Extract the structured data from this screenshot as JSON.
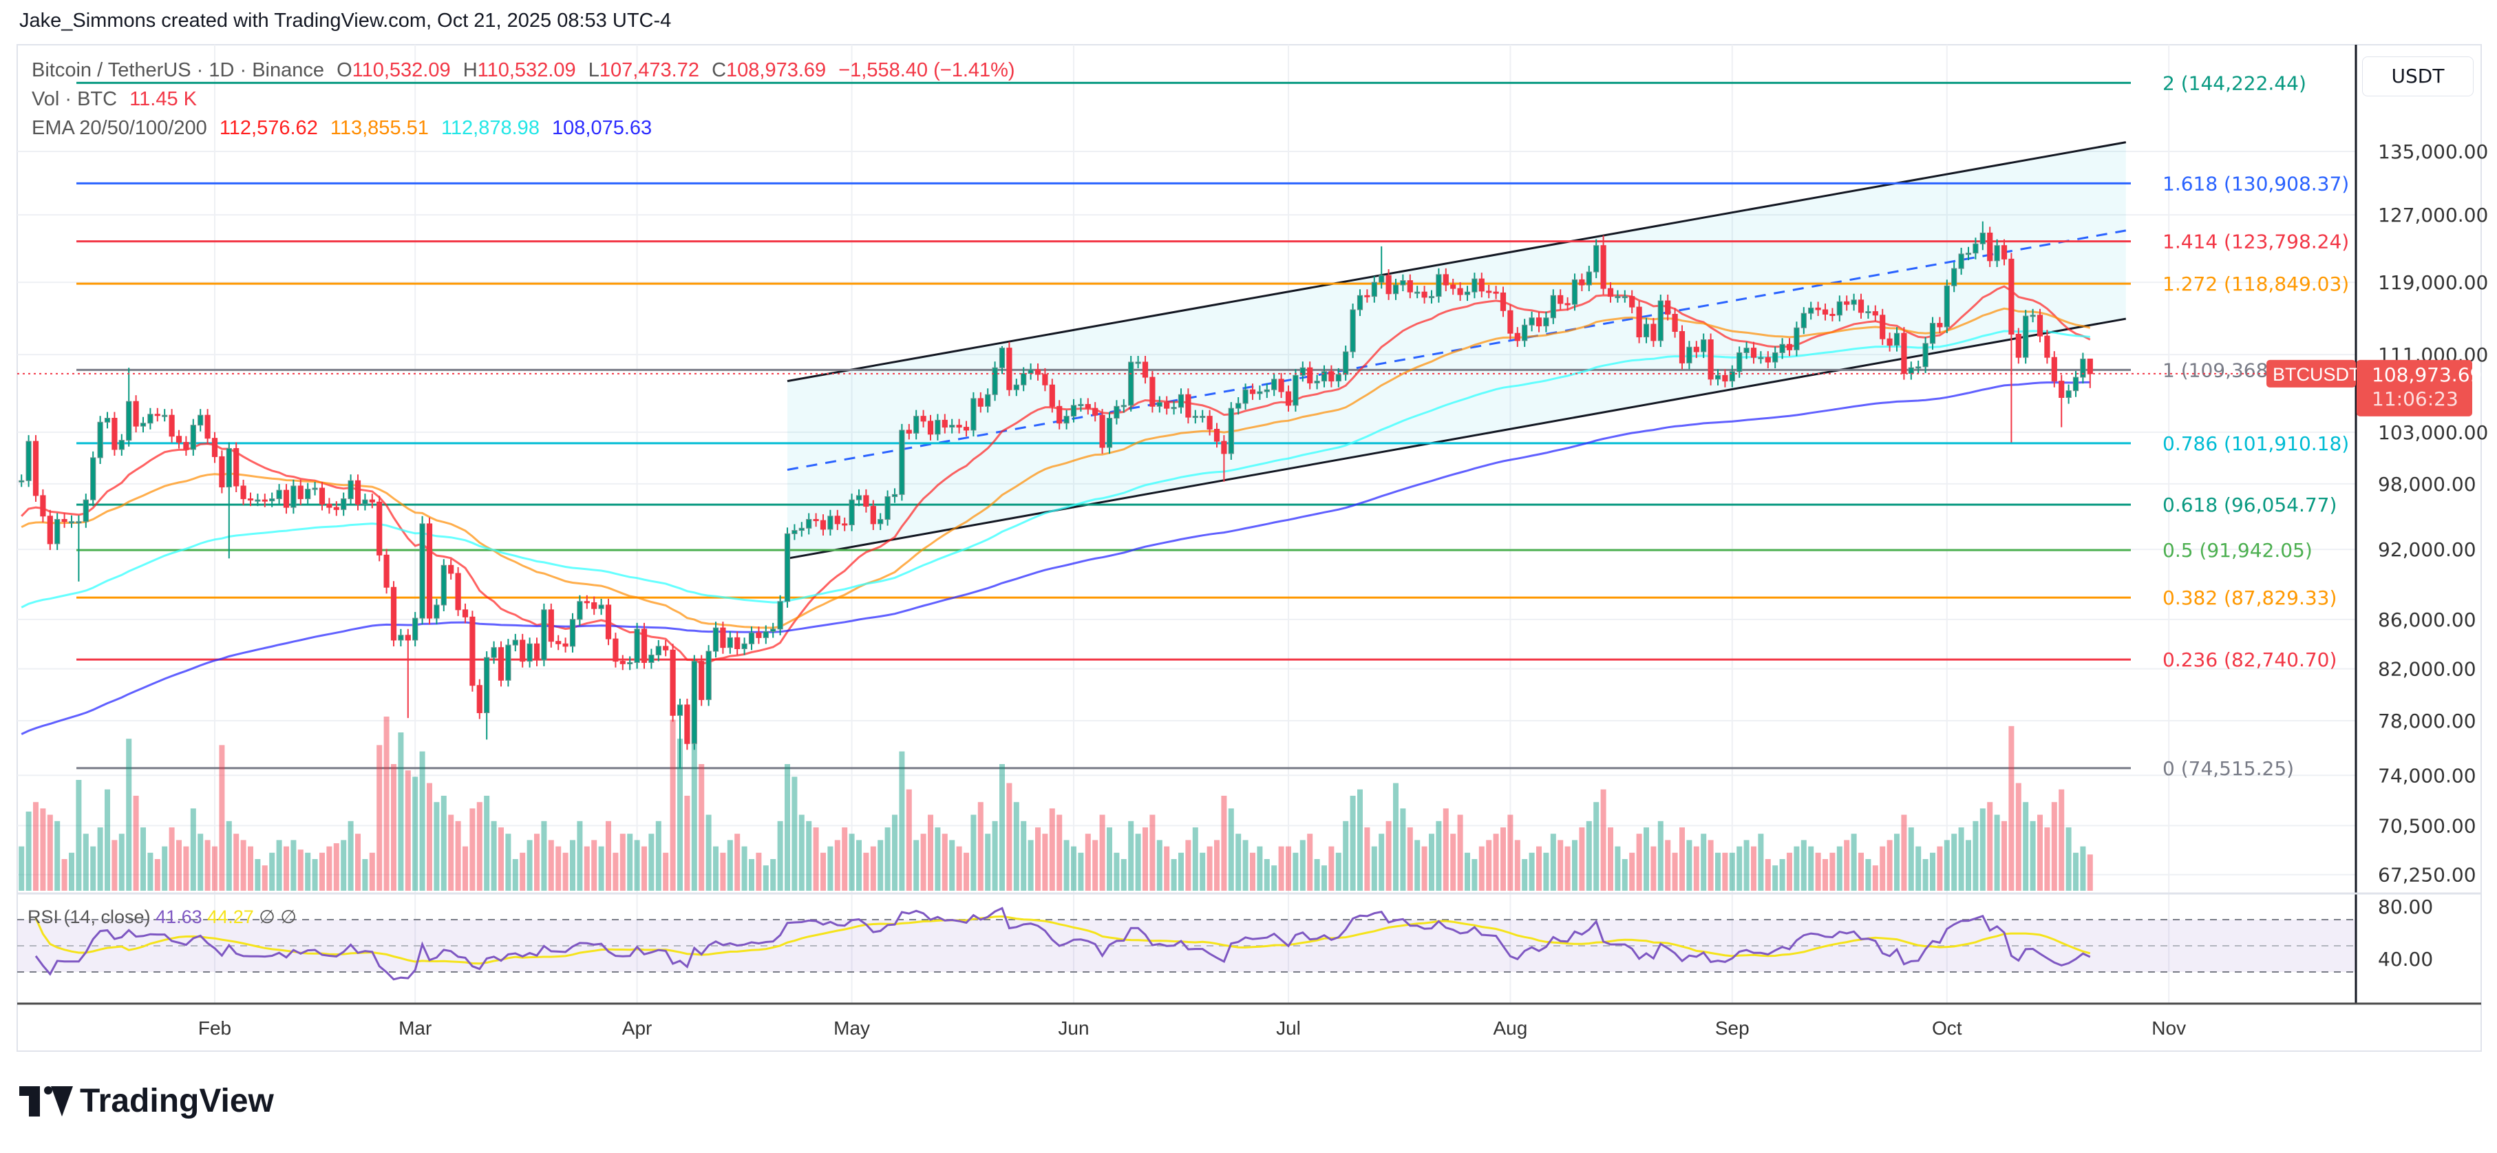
{
  "caption": "Jake_Simmons created with TradingView.com, Oct 21, 2025 08:53 UTC-4",
  "legend": {
    "symbol": "Bitcoin / TetherUS · 1D · Binance",
    "o_label": "O",
    "o": "110,532.09",
    "h_label": "H",
    "h": "110,532.09",
    "l_label": "L",
    "l": "107,473.72",
    "c_label": "C",
    "c": "108,973.69",
    "change": "−1,558.40 (−1.41%)",
    "vol_label": "Vol · BTC",
    "vol": "11.45 K",
    "ema_label": "EMA 20/50/100/200",
    "ema_values": [
      "112,576.62",
      "113,855.51",
      "112,878.98",
      "108,075.63"
    ]
  },
  "currency": "USDT",
  "price_tag": {
    "symbol": "BTCUSDT",
    "price": "108,973.69",
    "countdown": "11:06:23"
  },
  "rsi_legend": {
    "label": "RSI (14, close)",
    "rsi": "41.63",
    "signal": "44.27",
    "extra1": "∅",
    "extra2": "∅"
  },
  "logo": "TradingView",
  "colors": {
    "up": "#089981",
    "down": "#f23645",
    "ema20": "#ff1f1f",
    "ema50": "#ff8c00",
    "ema100": "#33ffff",
    "ema200": "#2b2bff",
    "rsi": "#7e57c2",
    "rsi_signal": "#f5e31a"
  },
  "chart_data": {
    "type": "candlestick",
    "scale": "log",
    "price_axis_labels": [
      "135,000.00",
      "127,000.00",
      "119,000.00",
      "111,000.00",
      "103,000.00",
      "98,000.00",
      "92,000.00",
      "86,000.00",
      "82,000.00",
      "78,000.00",
      "74,000.00",
      "70,500.00",
      "67,250.00"
    ],
    "rsi_axis_labels": [
      "80.00",
      "40.00"
    ],
    "time_axis_labels": [
      "Feb",
      "Mar",
      "Apr",
      "May",
      "Jun",
      "Jul",
      "Aug",
      "Sep",
      "Oct",
      "Nov"
    ],
    "grid": true,
    "months": [
      {
        "month": "Jan",
        "first_day": 5,
        "close": [
          98300,
          102100,
          96900,
          95000,
          92500,
          94700,
          94500,
          94500,
          94500,
          96500,
          100500,
          104000,
          104400,
          101300,
          102200,
          106100,
          103600,
          103900,
          104800,
          104700,
          104700,
          102600,
          102000,
          101300,
          103700,
          104700,
          102400
        ],
        "volume_k": [
          14,
          25,
          28,
          26,
          24,
          22,
          10,
          12,
          35,
          18,
          14,
          20,
          32,
          16,
          18,
          48,
          30,
          20,
          12,
          10,
          14,
          20,
          16,
          14,
          26,
          18,
          16
        ]
      },
      {
        "month": "Feb",
        "first_day": 1,
        "close": [
          100600,
          97700,
          101400,
          97800,
          96600,
          96500,
          96500,
          96400,
          96600,
          97400,
          95800,
          97800,
          96600,
          97500,
          97600,
          96100,
          95800,
          95600,
          96600,
          98300,
          96100,
          96500,
          96300,
          91500,
          88700,
          84300,
          84700,
          84300
        ],
        "volume_k": [
          14,
          46,
          22,
          18,
          16,
          14,
          10,
          8,
          12,
          16,
          14,
          16,
          13,
          12,
          10,
          12,
          14,
          15,
          16,
          22,
          18,
          10,
          12,
          46,
          55,
          40,
          50,
          38
        ]
      },
      {
        "month": "Mar",
        "first_day": 1,
        "close": [
          86100,
          94300,
          86100,
          87200,
          90600,
          89900,
          86800,
          86200,
          80700,
          78600,
          82900,
          83700,
          81100,
          83900,
          84300,
          82600,
          84000,
          82700,
          86800,
          84200,
          84000,
          83800,
          86000,
          87500,
          87400,
          86900,
          87200,
          84400,
          82600,
          82400,
          82500
        ],
        "volume_k": [
          36,
          44,
          34,
          28,
          30,
          24,
          22,
          14,
          26,
          28,
          30,
          22,
          20,
          18,
          10,
          12,
          16,
          18,
          22,
          16,
          14,
          12,
          16,
          22,
          14,
          16,
          14,
          22,
          12,
          18,
          18
        ]
      },
      {
        "month": "Apr",
        "first_day": 1,
        "close": [
          85200,
          82500,
          83100,
          83800,
          83500,
          78400,
          79200,
          76300,
          82600,
          79600,
          83400,
          85300,
          83700,
          84500,
          83600,
          84000,
          84900,
          84500,
          85000,
          85200,
          87500,
          93400,
          93700,
          93900,
          94700,
          94600,
          93800,
          95000,
          94300,
          94200
        ],
        "volume_k": [
          16,
          14,
          18,
          22,
          12,
          54,
          48,
          30,
          62,
          40,
          24,
          14,
          12,
          16,
          18,
          14,
          10,
          12,
          8,
          10,
          22,
          40,
          36,
          24,
          22,
          20,
          12,
          14,
          16,
          20
        ]
      },
      {
        "month": "May",
        "first_day": 1,
        "close": [
          96500,
          96900,
          95900,
          94300,
          94700,
          96800,
          97000,
          103200,
          102900,
          104600,
          104100,
          102800,
          104200,
          103500,
          103700,
          103500,
          103200,
          106400,
          105600,
          106800,
          109600,
          111700,
          107300,
          107800,
          109000,
          109400,
          108900,
          107800,
          105600,
          103900,
          104600
        ],
        "volume_k": [
          18,
          16,
          12,
          14,
          16,
          20,
          24,
          44,
          32,
          16,
          18,
          24,
          20,
          18,
          16,
          14,
          12,
          24,
          28,
          18,
          22,
          40,
          34,
          28,
          22,
          16,
          20,
          18,
          26,
          24,
          16
        ]
      },
      {
        "month": "Jun",
        "first_day": 1,
        "close": [
          105700,
          105800,
          105400,
          104700,
          101500,
          104400,
          105600,
          105700,
          110200,
          110200,
          108600,
          105600,
          106000,
          105400,
          105500,
          106800,
          104500,
          104600,
          104600,
          103300,
          102100,
          100900,
          105400,
          105900,
          107300,
          106900,
          107100,
          107300,
          108400,
          107100
        ],
        "volume_k": [
          14,
          12,
          18,
          16,
          24,
          20,
          12,
          10,
          22,
          18,
          20,
          24,
          16,
          14,
          10,
          12,
          16,
          20,
          12,
          14,
          16,
          30,
          26,
          18,
          16,
          12,
          14,
          10,
          8,
          14
        ]
      },
      {
        "month": "Jul",
        "first_day": 1,
        "close": [
          105700,
          108800,
          109600,
          108000,
          108200,
          109200,
          108200,
          108900,
          111300,
          115900,
          117500,
          117400,
          119000,
          119800,
          117700,
          118700,
          119200,
          117900,
          117900,
          117300,
          117400,
          119900,
          118700,
          118300,
          117600,
          117900,
          119400,
          118000,
          117900,
          117800,
          115800
        ],
        "volume_k": [
          14,
          12,
          16,
          18,
          10,
          8,
          14,
          12,
          22,
          30,
          32,
          20,
          14,
          18,
          22,
          34,
          26,
          20,
          16,
          14,
          18,
          22,
          26,
          18,
          24,
          12,
          10,
          14,
          16,
          18,
          20
        ]
      },
      {
        "month": "Aug",
        "first_day": 1,
        "close": [
          113300,
          112500,
          114200,
          115000,
          114100,
          115000,
          117500,
          116600,
          116500,
          119300,
          118700,
          120200,
          123300,
          118300,
          117400,
          117400,
          117400,
          116200,
          112900,
          114300,
          112500,
          116900,
          115400,
          113500,
          110100,
          111800,
          111300,
          112600,
          108400,
          108800,
          108200
        ],
        "volume_k": [
          24,
          16,
          10,
          12,
          14,
          12,
          18,
          16,
          14,
          16,
          20,
          22,
          28,
          32,
          20,
          14,
          10,
          12,
          18,
          20,
          14,
          22,
          16,
          12,
          20,
          16,
          14,
          18,
          16,
          12,
          12
        ]
      },
      {
        "month": "Sep",
        "first_day": 1,
        "close": [
          109200,
          111200,
          111700,
          110700,
          110700,
          110200,
          111200,
          112100,
          111500,
          113900,
          115500,
          116100,
          115900,
          115400,
          115300,
          116800,
          116500,
          117000,
          115600,
          115700,
          115300,
          112700,
          112000,
          113300,
          109000,
          109600,
          109700,
          112200,
          114400,
          114000
        ],
        "volume_k": [
          12,
          14,
          16,
          14,
          18,
          10,
          8,
          10,
          12,
          14,
          16,
          14,
          12,
          10,
          12,
          14,
          16,
          18,
          12,
          10,
          8,
          14,
          16,
          18,
          24,
          20,
          14,
          10,
          12,
          14
        ]
      },
      {
        "month": "Oct",
        "first_day": 1,
        "close": [
          118600,
          120600,
          122300,
          122400,
          123500,
          124800,
          121500,
          123300,
          121700,
          113200,
          110700,
          115200,
          115300,
          113000,
          110700,
          108200,
          106500,
          107200,
          108600,
          110532.09,
          108973.69
        ],
        "volume_k": [
          16,
          18,
          20,
          16,
          22,
          26,
          28,
          24,
          22,
          52,
          34,
          28,
          22,
          24,
          20,
          28,
          32,
          20,
          12,
          14,
          11.45
        ]
      }
    ],
    "wicks": [
      {
        "date": "Jan 13",
        "low": 89200
      },
      {
        "date": "Jan 20",
        "high": 109600
      },
      {
        "date": "Feb 3",
        "low": 91200
      },
      {
        "date": "Feb 28",
        "low": 78200
      },
      {
        "date": "Mar 2",
        "high": 95000
      },
      {
        "date": "Mar 11",
        "low": 76600
      },
      {
        "date": "Apr 7",
        "low": 74500
      },
      {
        "date": "May 22",
        "high": 111900
      },
      {
        "date": "Jun 22",
        "low": 98200
      },
      {
        "date": "Jul 14",
        "high": 123200
      },
      {
        "date": "Aug 14",
        "high": 124500
      },
      {
        "date": "Oct 6",
        "high": 126200
      },
      {
        "date": "Oct 10",
        "low": 102000
      },
      {
        "date": "Oct 17",
        "low": 103500
      },
      {
        "date": "Oct 21",
        "high": 110532.09,
        "low": 107473.72
      }
    ],
    "ema": {
      "periods": [
        20,
        50,
        100,
        200
      ],
      "values_at_first_candle": [
        95000,
        94000,
        87000,
        77000
      ]
    },
    "rsi": {
      "period": 14,
      "signal_period": 14,
      "levels": [
        70,
        50,
        30
      ]
    },
    "channel": {
      "start": "Apr 22",
      "end": "Oct 26",
      "upper": [
        108200,
        136200
      ],
      "lower": [
        91200,
        114900
      ]
    },
    "fib_levels": [
      {
        "level": "2",
        "value": "144,222.44",
        "price": 144222.44,
        "color": "#089981"
      },
      {
        "level": "1.618",
        "value": "130,908.37",
        "price": 130908.37,
        "color": "#2962ff"
      },
      {
        "level": "1.414",
        "value": "123,798.24",
        "price": 123798.24,
        "color": "#f23645"
      },
      {
        "level": "1.272",
        "value": "118,849.03",
        "price": 118849.03,
        "color": "#ff9800"
      },
      {
        "level": "1",
        "value": "109,368.",
        "price": 109368,
        "color": "#787b86"
      },
      {
        "level": "0.786",
        "value": "101,910.18",
        "price": 101910.18,
        "color": "#00bcd4"
      },
      {
        "level": "0.618",
        "value": "96,054.77",
        "price": 96054.77,
        "color": "#089981"
      },
      {
        "level": "0.5",
        "value": "91,942.05",
        "price": 91942.05,
        "color": "#4caf50"
      },
      {
        "level": "0.382",
        "value": "87,829.33",
        "price": 87829.33,
        "color": "#ff9800"
      },
      {
        "level": "0.236",
        "value": "82,740.70",
        "price": 82740.7,
        "color": "#f23645"
      },
      {
        "level": "0",
        "value": "74,515.25",
        "price": 74515.25,
        "color": "#787b86"
      }
    ],
    "last_price": 108973.69
  }
}
